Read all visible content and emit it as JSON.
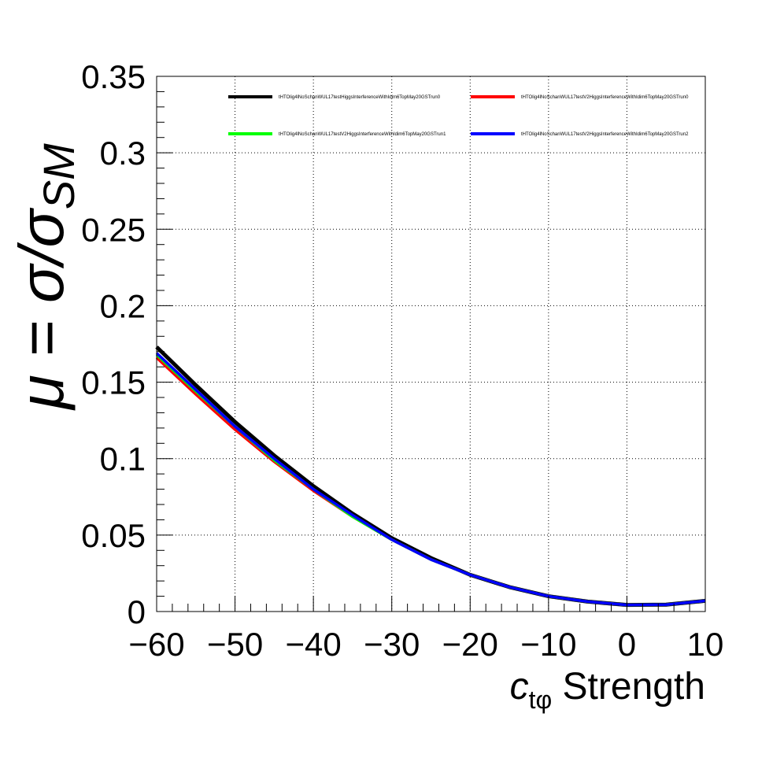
{
  "chart_data": {
    "type": "line",
    "title": "",
    "xlabel": {
      "main": "c",
      "subscript": "tφ",
      "suffix": " Strength"
    },
    "ylabel": {
      "main": "μ = σ/σ",
      "subscript": "SM"
    },
    "xlim": [
      -60,
      10
    ],
    "ylim": [
      0,
      0.35
    ],
    "xticks": [
      -60,
      -50,
      -40,
      -30,
      -20,
      -10,
      0,
      10
    ],
    "xtick_labels": [
      "−60",
      "−50",
      "−40",
      "−30",
      "−20",
      "−10",
      "0",
      "10"
    ],
    "yticks": [
      0,
      0.05,
      0.1,
      0.15,
      0.2,
      0.25,
      0.3,
      0.35
    ],
    "ytick_labels": [
      "0",
      "0.05",
      "0.1",
      "0.15",
      "0.2",
      "0.25",
      "0.3",
      "0.35"
    ],
    "grid": true,
    "legend_position": "top",
    "x": [
      -60,
      -55,
      -50,
      -45,
      -40,
      -35,
      -30,
      -25,
      -20,
      -15,
      -10,
      -5,
      0,
      5,
      10
    ],
    "series": [
      {
        "name": "tHTOlig4lNoSchanWUL17testHiggsInterferenceWithIdim6TopMay20GSTrun0",
        "color": "#000000",
        "values": [
          0.173,
          0.148,
          0.124,
          0.102,
          0.082,
          0.064,
          0.048,
          0.035,
          0.024,
          0.016,
          0.01,
          0.0065,
          0.0043,
          0.0045,
          0.007
        ]
      },
      {
        "name": "tHTOlig4lNoSchanWUL17testV2HiggsInterferenceWithIdim6TopMay20GSTrun0",
        "color": "#ff0000",
        "values": [
          0.166,
          0.142,
          0.119,
          0.098,
          0.079,
          0.062,
          0.047,
          0.034,
          0.024,
          0.016,
          0.01,
          0.0065,
          0.0043,
          0.0045,
          0.007
        ]
      },
      {
        "name": "tHTOlig4lNoSchanWUL17testV2HiggsInterferenceWithIdim6TopMay20GSTrun1",
        "color": "#00ff00",
        "values": [
          0.168,
          0.144,
          0.121,
          0.099,
          0.08,
          0.062,
          0.047,
          0.034,
          0.024,
          0.016,
          0.01,
          0.0065,
          0.0043,
          0.0045,
          0.007
        ]
      },
      {
        "name": "tHTOlig4lNoSchanWUL17testV2HiggsInterferenceWithIdim6TopMay20GSTrun2",
        "color": "#0000ff",
        "values": [
          0.169,
          0.145,
          0.121,
          0.1,
          0.08,
          0.063,
          0.047,
          0.034,
          0.024,
          0.016,
          0.01,
          0.0065,
          0.0043,
          0.0045,
          0.007
        ]
      }
    ]
  }
}
